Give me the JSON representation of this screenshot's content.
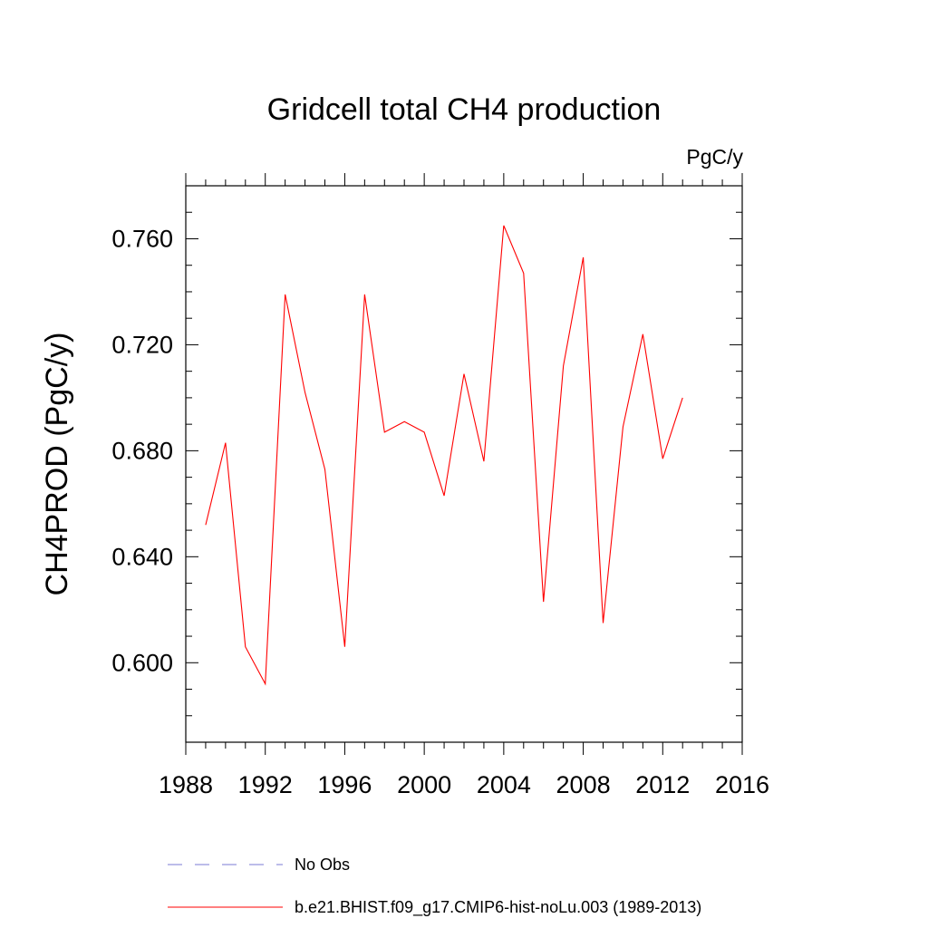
{
  "chart_data": {
    "type": "line",
    "title": "Gridcell total CH4 production",
    "units_label": "PgC/y",
    "xlabel": "",
    "ylabel": "CH4PROD  (PgC/y)",
    "xlim": [
      1988,
      2016
    ],
    "ylim": [
      0.57,
      0.78
    ],
    "x_ticks": [
      1988,
      1992,
      1996,
      2000,
      2004,
      2008,
      2012,
      2016
    ],
    "x_tick_labels": [
      "1988",
      "1992",
      "1996",
      "2000",
      "2004",
      "2008",
      "2012",
      "2016"
    ],
    "y_ticks": [
      0.6,
      0.64,
      0.68,
      0.72,
      0.76
    ],
    "y_tick_labels": [
      "0.600",
      "0.640",
      "0.680",
      "0.720",
      "0.760"
    ],
    "grid": false,
    "legend_position": "bottom",
    "series": [
      {
        "name": "b.e21.BHIST.f09_g17.CMIP6-hist-noLu.003 (1989-2013)",
        "color": "#ff0000",
        "x": [
          1989,
          1990,
          1991,
          1992,
          1993,
          1994,
          1995,
          1996,
          1997,
          1998,
          1999,
          2000,
          2001,
          2002,
          2003,
          2004,
          2005,
          2006,
          2007,
          2008,
          2009,
          2010,
          2011,
          2012,
          2013
        ],
        "values": [
          0.652,
          0.683,
          0.606,
          0.592,
          0.739,
          0.702,
          0.673,
          0.606,
          0.739,
          0.687,
          0.691,
          0.687,
          0.663,
          0.709,
          0.676,
          0.765,
          0.747,
          0.623,
          0.712,
          0.753,
          0.615,
          0.689,
          0.724,
          0.677,
          0.7
        ]
      }
    ],
    "legend": [
      {
        "label": "No Obs",
        "color": "#7b7bd6",
        "style": "dashed"
      },
      {
        "label": "b.e21.BHIST.f09_g17.CMIP6-hist-noLu.003 (1989-2013)",
        "color": "#ff0000",
        "style": "solid"
      }
    ]
  }
}
